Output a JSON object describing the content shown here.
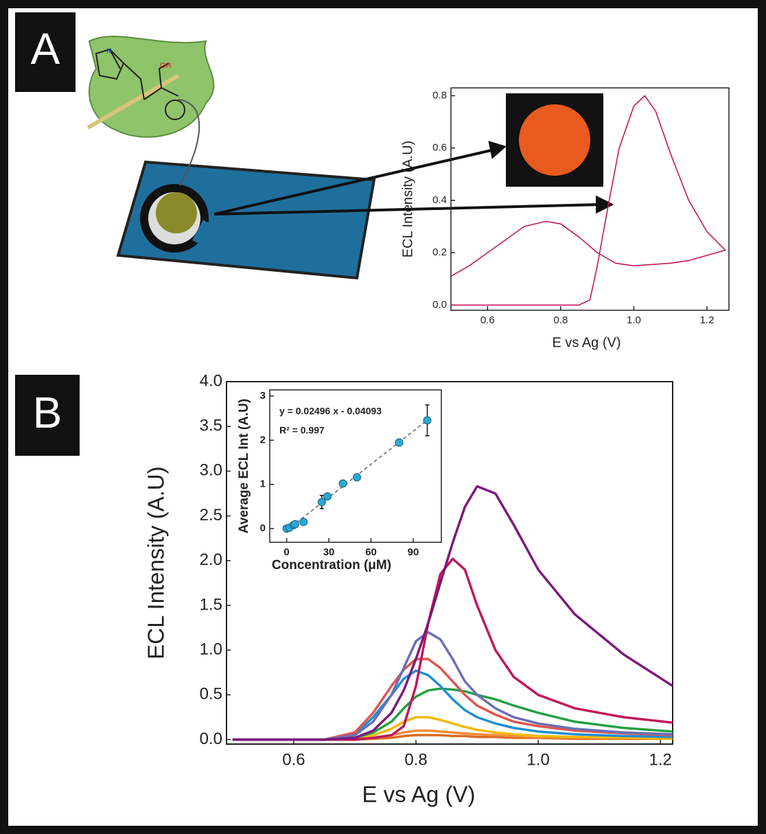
{
  "panel_labels": [
    "A",
    "B"
  ],
  "chart_data": [
    {
      "type": "line",
      "xlabel": "E vs Ag (V)",
      "ylabel": "ECL Intensity (A.U)",
      "color": "#c8175d",
      "x": [
        0.5,
        0.6,
        0.7,
        0.8,
        0.85,
        0.88,
        0.9,
        0.93,
        0.96,
        1.0,
        1.03,
        1.06,
        1.1,
        1.15,
        1.2,
        1.25,
        1.2,
        1.15,
        1.1,
        1.05,
        1.0,
        0.95,
        0.9,
        0.85,
        0.8,
        0.76,
        0.7,
        0.65,
        0.6,
        0.55,
        0.5
      ],
      "values": [
        0,
        0,
        0,
        0,
        0,
        0.02,
        0.15,
        0.38,
        0.6,
        0.76,
        0.8,
        0.74,
        0.58,
        0.4,
        0.28,
        0.21,
        0.19,
        0.17,
        0.16,
        0.155,
        0.15,
        0.16,
        0.2,
        0.26,
        0.31,
        0.32,
        0.3,
        0.25,
        0.2,
        0.15,
        0.11
      ],
      "xlim": [
        0.5,
        1.26
      ],
      "ylim": [
        -0.02,
        0.83
      ],
      "xticks": [
        0.6,
        0.8,
        {
          "value": 1.0,
          "label": "1.0"
        },
        1.2
      ],
      "yticks": [
        {
          "value": 0,
          "label": "0.0"
        },
        0.2,
        0.4,
        0.6,
        0.8
      ]
    },
    {
      "type": "line",
      "xlabel": "E vs Ag (V)",
      "ylabel": "ECL Intensity (A.U)",
      "x": [
        0.5,
        0.6,
        0.65,
        0.7,
        0.73,
        0.76,
        0.78,
        0.8,
        0.82,
        0.84,
        0.86,
        0.88,
        0.9,
        0.93,
        0.96,
        1.0,
        1.06,
        1.14,
        1.22
      ],
      "series": [
        {
          "color": "#dd6a1f",
          "values": [
            0,
            0,
            0,
            0,
            0.01,
            0.02,
            0.04,
            0.05,
            0.05,
            0.05,
            0.04,
            0.04,
            0.03,
            0.03,
            0.02,
            0.02,
            0.01,
            0.01,
            0.01
          ]
        },
        {
          "color": "#f28c3a",
          "values": [
            0,
            0,
            0,
            0,
            0.02,
            0.05,
            0.08,
            0.1,
            0.1,
            0.09,
            0.08,
            0.07,
            0.06,
            0.05,
            0.04,
            0.03,
            0.02,
            0.02,
            0.01
          ]
        },
        {
          "color": "#f5b800",
          "values": [
            0,
            0,
            0,
            0.01,
            0.05,
            0.12,
            0.2,
            0.25,
            0.25,
            0.22,
            0.18,
            0.14,
            0.11,
            0.08,
            0.06,
            0.04,
            0.03,
            0.02,
            0.01
          ]
        },
        {
          "color": "#23a043",
          "values": [
            0,
            0,
            0,
            0.02,
            0.08,
            0.2,
            0.35,
            0.48,
            0.55,
            0.57,
            0.56,
            0.54,
            0.5,
            0.45,
            0.38,
            0.3,
            0.2,
            0.13,
            0.09
          ]
        },
        {
          "color": "#1f8fd6",
          "values": [
            0,
            0,
            0,
            0.06,
            0.25,
            0.5,
            0.68,
            0.77,
            0.72,
            0.6,
            0.45,
            0.33,
            0.25,
            0.18,
            0.13,
            0.09,
            0.06,
            0.04,
            0.03
          ]
        },
        {
          "color": "#e0554f",
          "values": [
            0,
            0,
            0,
            0.08,
            0.3,
            0.6,
            0.78,
            0.9,
            0.9,
            0.8,
            0.65,
            0.5,
            0.38,
            0.28,
            0.2,
            0.15,
            0.1,
            0.07,
            0.05
          ]
        },
        {
          "color": "#6a6fb5",
          "values": [
            0,
            0,
            0,
            0.05,
            0.2,
            0.5,
            0.8,
            1.1,
            1.2,
            1.12,
            0.9,
            0.65,
            0.5,
            0.35,
            0.25,
            0.18,
            0.12,
            0.08,
            0.06
          ]
        },
        {
          "color": "#c0185a",
          "values": [
            0,
            0,
            0,
            0,
            0.02,
            0.05,
            0.15,
            0.6,
            1.3,
            1.85,
            2.02,
            1.9,
            1.5,
            1.0,
            0.7,
            0.5,
            0.35,
            0.25,
            0.19
          ]
        },
        {
          "color": "#7b1a7e",
          "values": [
            0,
            0,
            0,
            0.02,
            0.1,
            0.3,
            0.55,
            0.9,
            1.3,
            1.75,
            2.2,
            2.6,
            2.83,
            2.75,
            2.4,
            1.9,
            1.4,
            0.95,
            0.6
          ]
        }
      ],
      "xlim": [
        0.49,
        1.22
      ],
      "ylim": [
        -0.05,
        4.0
      ],
      "xticks": [
        0.6,
        0.8,
        {
          "value": 1.0,
          "label": "1.0"
        },
        1.2
      ],
      "yticks": [
        {
          "value": 0,
          "label": "0.0"
        },
        0.5,
        {
          "value": 1.0,
          "label": "1.0"
        },
        1.5,
        {
          "value": 2.0,
          "label": "2.0"
        },
        2.5,
        {
          "value": 3.0,
          "label": "3.0"
        },
        3.5,
        {
          "value": 4.0,
          "label": "4.0"
        }
      ]
    },
    {
      "type": "scatter",
      "xlabel": "Concentration (μM)",
      "ylabel": "Average ECL Int (A.U)",
      "color": "#29a9d6",
      "annotations": [
        "y = 0.02496 x - 0.04093",
        "R² = 0.997"
      ],
      "fit": {
        "slope": 0.02496,
        "intercept": -0.04093
      },
      "x": [
        0,
        2,
        5,
        6,
        12,
        25,
        29,
        40,
        50,
        80,
        100
      ],
      "values": [
        0,
        0.02,
        0.08,
        0.1,
        0.15,
        0.6,
        0.73,
        1.02,
        1.16,
        1.95,
        2.45
      ],
      "errors": [
        0.03,
        0.03,
        0.03,
        0.03,
        0.04,
        0.15,
        0.07,
        0.06,
        0.05,
        0.06,
        0.35
      ],
      "xlim": [
        -12,
        110
      ],
      "ylim": [
        -0.31,
        3.14
      ],
      "xticks": [
        0,
        30,
        60,
        90
      ],
      "yticks": [
        0,
        1,
        2,
        3
      ]
    }
  ]
}
